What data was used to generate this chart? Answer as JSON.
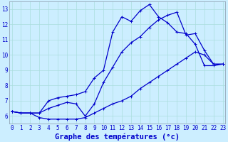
{
  "xlabel": "Graphe des températures (°c)",
  "background_color": "#cceeff",
  "line_color": "#0000cc",
  "x": [
    0,
    1,
    2,
    3,
    4,
    5,
    6,
    7,
    8,
    9,
    10,
    11,
    12,
    13,
    14,
    15,
    16,
    17,
    18,
    19,
    20,
    21,
    22,
    23
  ],
  "line1": [
    6.3,
    6.2,
    6.2,
    6.2,
    7.0,
    7.2,
    7.3,
    7.4,
    7.6,
    8.5,
    9.0,
    11.5,
    12.5,
    12.2,
    12.9,
    13.3,
    12.5,
    12.1,
    11.5,
    11.4,
    10.7,
    9.3,
    9.3,
    9.4
  ],
  "line2": [
    6.3,
    6.2,
    6.2,
    6.2,
    6.5,
    6.7,
    6.9,
    6.8,
    6.0,
    6.8,
    8.2,
    9.2,
    10.2,
    10.8,
    11.2,
    11.8,
    12.3,
    12.6,
    12.8,
    11.3,
    11.4,
    10.3,
    9.4,
    9.4
  ],
  "line3": [
    6.3,
    6.2,
    6.2,
    5.9,
    5.8,
    5.8,
    5.8,
    5.8,
    5.9,
    6.2,
    6.5,
    6.8,
    7.0,
    7.3,
    7.8,
    8.2,
    8.6,
    9.0,
    9.4,
    9.8,
    10.2,
    10.0,
    9.4,
    9.4
  ],
  "ylim": [
    5.5,
    13.5
  ],
  "xlim": [
    -0.3,
    23.3
  ],
  "yticks": [
    6,
    7,
    8,
    9,
    10,
    11,
    12,
    13
  ],
  "xticks": [
    0,
    1,
    2,
    3,
    4,
    5,
    6,
    7,
    8,
    9,
    10,
    11,
    12,
    13,
    14,
    15,
    16,
    17,
    18,
    19,
    20,
    21,
    22,
    23
  ],
  "grid_color": "#aadddd",
  "tick_fontsize": 5.5,
  "xlabel_fontsize": 7.5
}
